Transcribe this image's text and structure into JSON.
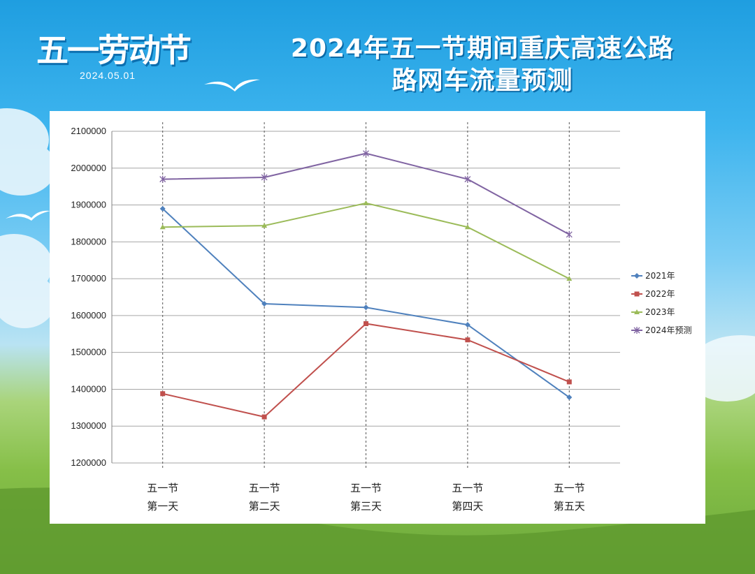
{
  "logo": {
    "title": "五一劳动节",
    "date": "2024.05.01"
  },
  "header": {
    "title_line1": "2024年五一节期间重庆高速公路",
    "title_line2": "路网车流量预测"
  },
  "colors": {
    "series_2021": "#4f81bd",
    "series_2022": "#c0504d",
    "series_2023": "#9bbb59",
    "series_2024": "#8064a2"
  },
  "chart_data": {
    "type": "line",
    "categories": [
      [
        "五一节",
        "第一天"
      ],
      [
        "五一节",
        "第二天"
      ],
      [
        "五一节",
        "第三天"
      ],
      [
        "五一节",
        "第四天"
      ],
      [
        "五一节",
        "第五天"
      ]
    ],
    "ylim": [
      1200000,
      2100000
    ],
    "yticks": [
      2100000,
      2000000,
      1900000,
      1800000,
      1700000,
      1600000,
      1500000,
      1400000,
      1300000,
      1200000
    ],
    "grid": true,
    "legend_position": "right",
    "series": [
      {
        "name": "2021年",
        "marker": "diamond",
        "values": [
          1890000,
          1632000,
          1622000,
          1575000,
          1378000
        ]
      },
      {
        "name": "2022年",
        "marker": "square",
        "values": [
          1388000,
          1325000,
          1578000,
          1534000,
          1420000
        ]
      },
      {
        "name": "2023年",
        "marker": "triangle",
        "values": [
          1840000,
          1844000,
          1905000,
          1840000,
          1700000
        ]
      },
      {
        "name": "2024年预测",
        "marker": "star",
        "values": [
          1970000,
          1975000,
          2040000,
          1970000,
          1820000
        ]
      }
    ]
  }
}
